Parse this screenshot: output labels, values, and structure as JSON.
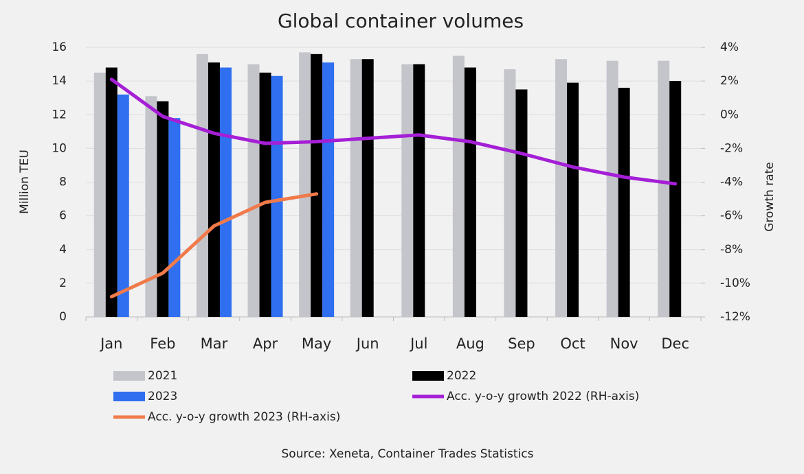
{
  "chart_data": {
    "type": "bar",
    "title": "Global container volumes",
    "ylabel": "Million TEU",
    "y2label": "Growth rate",
    "source": "Source: Xeneta, Container Trades Statistics",
    "categories": [
      "Jan",
      "Feb",
      "Mar",
      "Apr",
      "May",
      "Jun",
      "Jul",
      "Aug",
      "Sep",
      "Oct",
      "Nov",
      "Dec"
    ],
    "series": [
      {
        "name": "2021",
        "type": "bar",
        "color": "#c4c5cb",
        "values": [
          14.5,
          13.1,
          15.6,
          15.0,
          15.7,
          15.3,
          15.0,
          15.5,
          14.7,
          15.3,
          15.2,
          15.2
        ]
      },
      {
        "name": "2022",
        "type": "bar",
        "color": "#000000",
        "values": [
          14.8,
          12.8,
          15.1,
          14.5,
          15.6,
          15.3,
          15.0,
          14.8,
          13.5,
          13.9,
          13.6,
          14.0
        ]
      },
      {
        "name": "2023",
        "type": "bar",
        "color": "#2f6ff0",
        "values": [
          13.2,
          11.8,
          14.8,
          14.3,
          15.1,
          null,
          null,
          null,
          null,
          null,
          null,
          null
        ]
      },
      {
        "name": "Acc. y-o-y growth 2022 (RH-axis)",
        "type": "line",
        "axis": "y2",
        "color": "#a51fd6",
        "values": [
          2.1,
          -0.1,
          -1.1,
          -1.7,
          -1.6,
          -1.4,
          -1.2,
          -1.6,
          -2.3,
          -3.1,
          -3.7,
          -4.1
        ]
      },
      {
        "name": "Acc. y-o-y growth 2023 (RH-axis)",
        "type": "line",
        "axis": "y2",
        "color": "#f07a4a",
        "values": [
          -10.8,
          -9.4,
          -6.6,
          -5.2,
          -4.7,
          null,
          null,
          null,
          null,
          null,
          null,
          null
        ]
      }
    ],
    "ylim": [
      0,
      16
    ],
    "yticks": [
      0,
      2,
      4,
      6,
      8,
      10,
      12,
      14,
      16
    ],
    "y2lim": [
      -12,
      4
    ],
    "y2ticks": [
      {
        "value": -12,
        "label": "-12%"
      },
      {
        "value": -10,
        "label": "-10%"
      },
      {
        "value": -8,
        "label": "-8%"
      },
      {
        "value": -6,
        "label": "-6%"
      },
      {
        "value": -4,
        "label": "-4%"
      },
      {
        "value": -2,
        "label": "-2%"
      },
      {
        "value": 0,
        "label": "0%"
      },
      {
        "value": 2,
        "label": "2%"
      },
      {
        "value": 4,
        "label": "4%"
      }
    ],
    "grid": true
  }
}
